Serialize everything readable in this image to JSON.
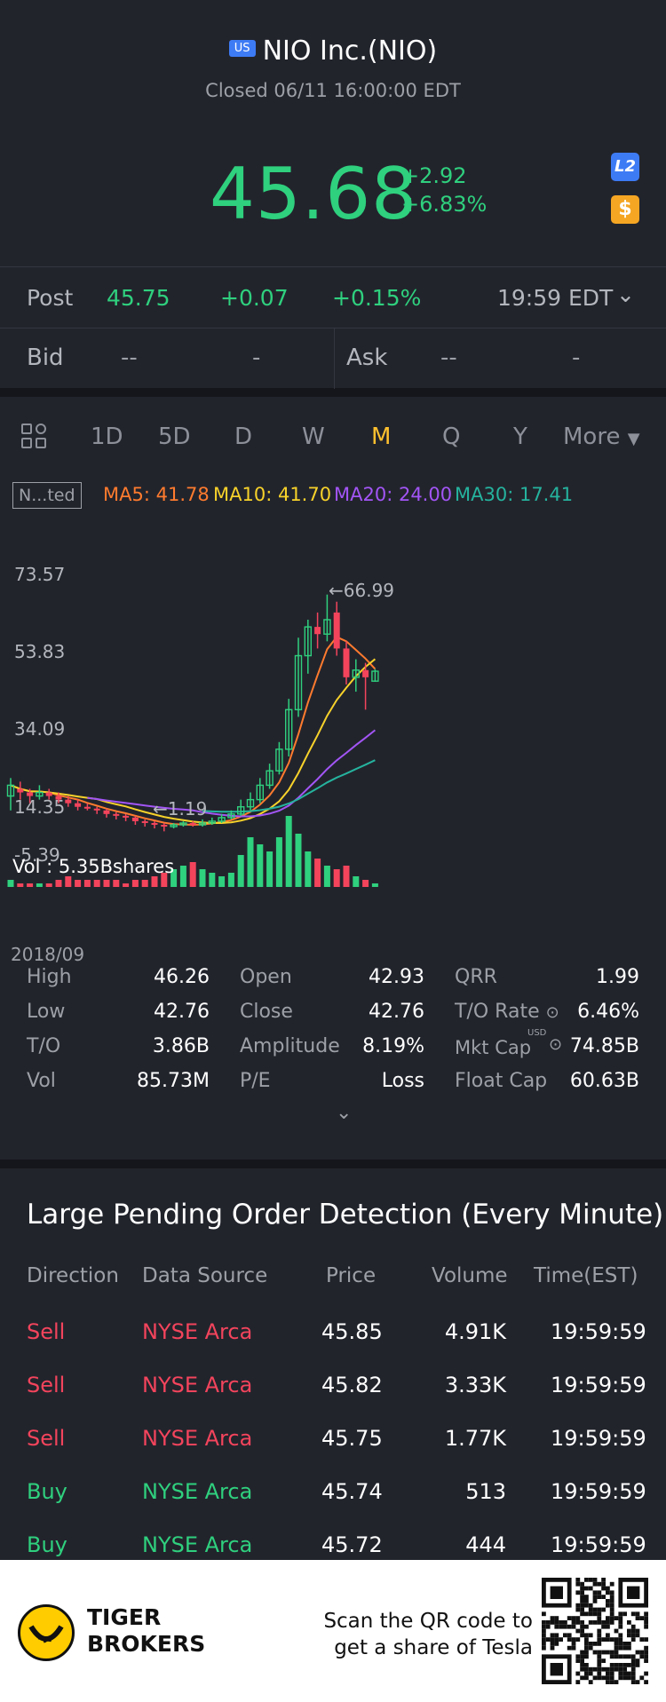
{
  "header": {
    "market_badge": "US",
    "title": "NIO Inc.(NIO)",
    "status": "Closed 06/11 16:00:00 EDT",
    "price": "45.68",
    "change": "+2.92",
    "change_pct": "+6.83%",
    "l2_label": "L2",
    "dollar_label": "$"
  },
  "post": {
    "label": "Post",
    "price": "45.75",
    "change": "+0.07",
    "change_pct": "+0.15%",
    "time": "19:59 EDT"
  },
  "bid": {
    "label": "Bid",
    "v1": "--",
    "v2": "-"
  },
  "ask": {
    "label": "Ask",
    "v1": "--",
    "v2": "-"
  },
  "tabs": {
    "t1d": "1D",
    "t5d": "5D",
    "d": "D",
    "w": "W",
    "m": "M",
    "q": "Q",
    "y": "Y",
    "more": "More"
  },
  "ma": {
    "adjust": "N...ted",
    "ma5": "MA5: 41.78",
    "ma10": "MA10: 41.70",
    "ma20": "MA20: 24.00",
    "ma30": "MA30: 17.41",
    "colors": {
      "ma5": "#ff7b2e",
      "ma10": "#f7d22a",
      "ma20": "#a255f5",
      "ma30": "#25b39e"
    }
  },
  "chart": {
    "y_labels": [
      "73.57",
      "53.83",
      "34.09",
      "14.35",
      "-5.39"
    ],
    "high_annot": "66.99",
    "low_annot": "1.19",
    "vol_label": "Vol  : 5.35Bshares",
    "date_label": "2018/09"
  },
  "chart_data": {
    "type": "candlestick",
    "title": "",
    "x_start_label": "2018/09",
    "ylim": [
      -5.39,
      73.57
    ],
    "y_ticks": [
      73.57,
      53.83,
      34.09,
      14.35,
      -5.39
    ],
    "max_annotation": 66.99,
    "min_annotation": 1.19,
    "candles": [
      {
        "o": 11,
        "c": 14,
        "h": 16,
        "l": 7,
        "d": "up"
      },
      {
        "o": 13,
        "c": 12,
        "h": 15,
        "l": 10,
        "d": "down"
      },
      {
        "o": 12,
        "c": 11,
        "h": 13,
        "l": 9,
        "d": "down"
      },
      {
        "o": 11,
        "c": 12,
        "h": 14,
        "l": 10,
        "d": "up"
      },
      {
        "o": 12,
        "c": 11,
        "h": 13,
        "l": 10,
        "d": "down"
      },
      {
        "o": 11,
        "c": 10,
        "h": 12,
        "l": 9,
        "d": "down"
      },
      {
        "o": 10,
        "c": 9,
        "h": 11,
        "l": 8,
        "d": "down"
      },
      {
        "o": 9,
        "c": 8,
        "h": 10,
        "l": 7,
        "d": "down"
      },
      {
        "o": 8,
        "c": 7.5,
        "h": 9,
        "l": 7,
        "d": "down"
      },
      {
        "o": 7.5,
        "c": 7,
        "h": 8,
        "l": 6,
        "d": "down"
      },
      {
        "o": 7,
        "c": 6,
        "h": 7.5,
        "l": 5,
        "d": "down"
      },
      {
        "o": 6,
        "c": 5.5,
        "h": 6.5,
        "l": 4.5,
        "d": "down"
      },
      {
        "o": 5.5,
        "c": 5,
        "h": 6,
        "l": 4,
        "d": "down"
      },
      {
        "o": 5,
        "c": 4,
        "h": 5.5,
        "l": 3,
        "d": "down"
      },
      {
        "o": 4,
        "c": 3.5,
        "h": 4.5,
        "l": 2.5,
        "d": "down"
      },
      {
        "o": 3.5,
        "c": 3,
        "h": 4,
        "l": 2,
        "d": "down"
      },
      {
        "o": 3,
        "c": 2.5,
        "h": 3.5,
        "l": 1.19,
        "d": "down"
      },
      {
        "o": 2.5,
        "c": 3,
        "h": 3.5,
        "l": 2,
        "d": "up"
      },
      {
        "o": 3,
        "c": 3.5,
        "h": 4,
        "l": 2.5,
        "d": "up"
      },
      {
        "o": 3.5,
        "c": 3,
        "h": 4,
        "l": 2.5,
        "d": "down"
      },
      {
        "o": 3,
        "c": 3.5,
        "h": 4.5,
        "l": 2.5,
        "d": "up"
      },
      {
        "o": 3.5,
        "c": 4,
        "h": 5,
        "l": 3,
        "d": "up"
      },
      {
        "o": 4,
        "c": 5,
        "h": 6,
        "l": 3.5,
        "d": "up"
      },
      {
        "o": 5,
        "c": 6,
        "h": 7,
        "l": 4.5,
        "d": "up"
      },
      {
        "o": 6,
        "c": 8,
        "h": 10,
        "l": 5.5,
        "d": "up"
      },
      {
        "o": 8,
        "c": 10,
        "h": 12,
        "l": 7,
        "d": "up"
      },
      {
        "o": 10,
        "c": 14,
        "h": 16,
        "l": 9,
        "d": "up"
      },
      {
        "o": 14,
        "c": 18,
        "h": 20,
        "l": 13,
        "d": "up"
      },
      {
        "o": 18,
        "c": 24,
        "h": 26,
        "l": 17,
        "d": "up"
      },
      {
        "o": 24,
        "c": 35,
        "h": 38,
        "l": 22,
        "d": "up"
      },
      {
        "o": 35,
        "c": 50,
        "h": 55,
        "l": 33,
        "d": "up"
      },
      {
        "o": 50,
        "c": 58,
        "h": 60,
        "l": 45,
        "d": "up"
      },
      {
        "o": 58,
        "c": 56,
        "h": 62,
        "l": 52,
        "d": "down"
      },
      {
        "o": 56,
        "c": 60,
        "h": 66.99,
        "l": 54,
        "d": "up"
      },
      {
        "o": 62,
        "c": 52,
        "h": 65,
        "l": 50,
        "d": "down"
      },
      {
        "o": 52,
        "c": 44,
        "h": 54,
        "l": 42,
        "d": "down"
      },
      {
        "o": 44,
        "c": 46,
        "h": 49,
        "l": 40,
        "d": "up"
      },
      {
        "o": 46,
        "c": 44,
        "h": 48,
        "l": 35,
        "d": "down"
      },
      {
        "o": 42.93,
        "c": 45.68,
        "h": 46.26,
        "l": 42.76,
        "d": "up"
      }
    ],
    "volume": [
      2,
      1,
      1,
      1,
      1,
      2,
      3,
      2,
      2,
      2,
      2,
      2,
      1,
      2,
      2,
      3,
      4,
      5,
      6,
      7,
      5,
      4,
      3,
      4,
      9,
      14,
      12,
      10,
      14,
      20,
      15,
      10,
      8,
      6,
      5,
      6,
      3,
      2,
      1
    ]
  },
  "stats": [
    {
      "label": "High",
      "value": "46.26"
    },
    {
      "label": "Open",
      "value": "42.93"
    },
    {
      "label": "QRR",
      "value": "1.99"
    },
    {
      "label": "Low",
      "value": "42.76"
    },
    {
      "label": "Close",
      "value": "42.76"
    },
    {
      "label": "T/O Rate",
      "value": "6.46%"
    },
    {
      "label": "T/O",
      "value": "3.86B"
    },
    {
      "label": "Amplitude",
      "value": "8.19%"
    },
    {
      "label": "Mkt Cap",
      "value": "74.85B"
    },
    {
      "label": "Vol",
      "value": "85.73M"
    },
    {
      "label": "P/E",
      "value": "Loss"
    },
    {
      "label": "Float Cap",
      "value": "60.63B"
    }
  ],
  "usd_tag": "USD",
  "orders": {
    "title": "Large Pending Order Detection (Every Minute)",
    "headers": [
      "Direction",
      "Data Source",
      "Price",
      "Volume",
      "Time(EST)"
    ],
    "rows": [
      {
        "direction": "Sell",
        "source": "NYSE Arca",
        "price": "45.85",
        "volume": "4.91K",
        "time": "19:59:59"
      },
      {
        "direction": "Sell",
        "source": "NYSE Arca",
        "price": "45.82",
        "volume": "3.33K",
        "time": "19:59:59"
      },
      {
        "direction": "Sell",
        "source": "NYSE Arca",
        "price": "45.75",
        "volume": "1.77K",
        "time": "19:59:59"
      },
      {
        "direction": "Buy",
        "source": "NYSE Arca",
        "price": "45.74",
        "volume": "513",
        "time": "19:59:59"
      },
      {
        "direction": "Buy",
        "source": "NYSE Arca",
        "price": "45.72",
        "volume": "444",
        "time": "19:59:59"
      }
    ]
  },
  "footer": {
    "brand_line1": "TIGER",
    "brand_line2": "BROKERS",
    "scan_line1": "Scan the QR code to",
    "scan_line2": "get a share of Tesla"
  }
}
